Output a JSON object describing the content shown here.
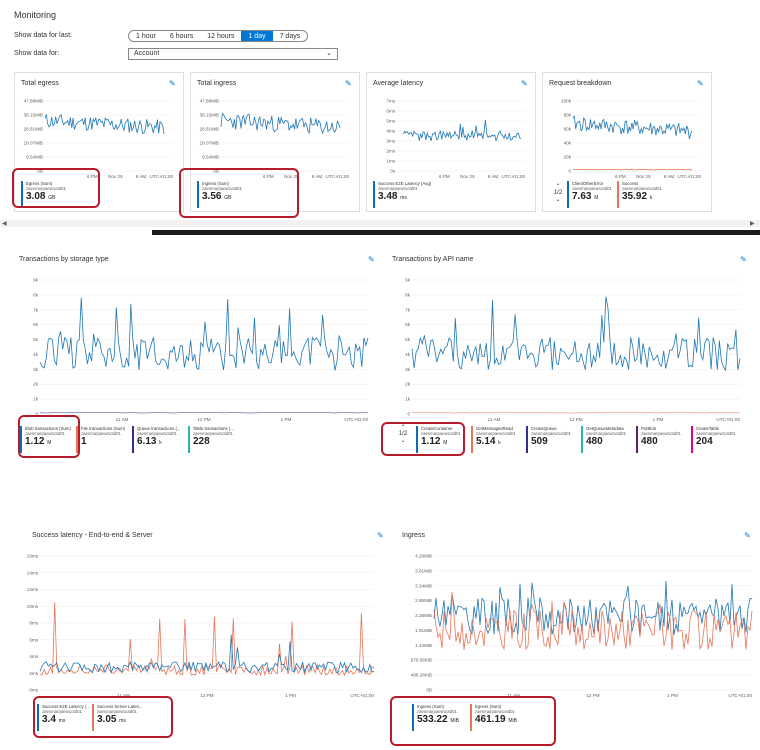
{
  "header": {
    "title": "Monitoring",
    "show_last_label": "Show data for last:",
    "show_for_label": "Show data for:",
    "time_options": [
      "1 hour",
      "6 hours",
      "12 hours",
      "1 day",
      "7 days"
    ],
    "time_selected": "1 day",
    "scope_value": "Account"
  },
  "tiles": [
    {
      "title": "Total egress",
      "yticks": [
        "47.68MiB",
        "38.15MiB",
        "28.61MiB",
        "19.07MiB",
        "9.54MiB",
        "0B"
      ],
      "xticks": [
        "6 PM",
        "Nov 25",
        "6 AM",
        "UTC+01:00"
      ],
      "legend": [
        {
          "name": "Egress (Sum)",
          "sub": "zaesmarpaew1otd01",
          "value": "3.08",
          "unit": "GB"
        }
      ]
    },
    {
      "title": "Total ingress",
      "yticks": [
        "47.68MiB",
        "38.15MiB",
        "28.61MiB",
        "19.07MiB",
        "9.54MiB",
        "0B"
      ],
      "xticks": [
        "6 PM",
        "Nov 25",
        "6 AM",
        "UTC+01:00"
      ],
      "legend": [
        {
          "name": "Ingress (Sum)",
          "sub": "zaesmarpaew1otd01",
          "value": "3.56",
          "unit": "GB"
        }
      ]
    },
    {
      "title": "Average latency",
      "yticks": [
        "7ms",
        "6ms",
        "5ms",
        "4ms",
        "3ms",
        "2ms",
        "1ms",
        "0s"
      ],
      "xticks": [
        "6 PM",
        "Nov 25",
        "6 AM",
        "UTC+01:00"
      ],
      "legend": [
        {
          "name": "Success E2E Latency (Avg)",
          "sub": "zaesmarpaew1otd01",
          "value": "3.48",
          "unit": "ms"
        }
      ]
    },
    {
      "title": "Request breakdown",
      "yticks": [
        "100k",
        "80k",
        "60k",
        "40k",
        "20k",
        "0"
      ],
      "xticks": [
        "6 PM",
        "Nov 25",
        "6 AM",
        "UTC+01:00"
      ],
      "pager": "1/2",
      "legend": [
        {
          "name": "ClientOtherError",
          "sub": "zaesmarpaew1otd01",
          "value": "7.63",
          "unit": "M"
        },
        {
          "name": "Success",
          "sub": "zaesmarpaew1otd01",
          "value": "35.92",
          "unit": "k"
        }
      ]
    }
  ],
  "panels": [
    {
      "title": "Transactions by storage type",
      "yticks": [
        "9k",
        "8k",
        "7k",
        "6k",
        "5k",
        "4k",
        "3k",
        "2k",
        "1k",
        "0"
      ],
      "xticks": [
        "11 AM",
        "12 PM",
        "1 PM",
        "UTC+01:00"
      ],
      "legend": [
        {
          "name": "Blob transactions (Sum)",
          "sub": "zaesmarpaew1otd01",
          "value": "1.12",
          "unit": "M"
        },
        {
          "name": "File transactions (Sum)",
          "sub": "zaesmarpaew1otd01",
          "value": "1",
          "unit": ""
        },
        {
          "name": "Queue transactions (...",
          "sub": "zaesmarpaew1otd01",
          "value": "6.13",
          "unit": "k"
        },
        {
          "name": "Table transactions (...",
          "sub": "zaesmarpaew1otd01",
          "value": "228",
          "unit": ""
        }
      ]
    },
    {
      "title": "Transactions by API name",
      "yticks": [
        "9k",
        "8k",
        "7k",
        "6k",
        "5k",
        "4k",
        "3k",
        "2k",
        "1k",
        "0"
      ],
      "xticks": [
        "11 AM",
        "12 PM",
        "1 PM",
        "UTC+01:00"
      ],
      "pager": "1/2",
      "legend": [
        {
          "name": "CreateContainer",
          "sub": "zaesmarpaew1otd01",
          "value": "1.12",
          "unit": "M"
        },
        {
          "name": "GetMessagesRead",
          "sub": "zaesmarpaew1otd01",
          "value": "5.14",
          "unit": "k"
        },
        {
          "name": "CreateQueue",
          "sub": "zaesmarpaew1otd01",
          "value": "509",
          "unit": ""
        },
        {
          "name": "GetQueueMetadata",
          "sub": "zaesmarpaew1otd01",
          "value": "480",
          "unit": ""
        },
        {
          "name": "PutBlob",
          "sub": "zaesmarpaew1otd01",
          "value": "480",
          "unit": ""
        },
        {
          "name": "CreateTable",
          "sub": "zaesmarpaew1otd01",
          "value": "204",
          "unit": ""
        }
      ]
    },
    {
      "title": "Success latency - End-to-end & Server",
      "yticks": [
        "16ms",
        "14ms",
        "12ms",
        "10ms",
        "8ms",
        "6ms",
        "4ms",
        "2ms",
        "0ms"
      ],
      "xticks": [
        "11 AM",
        "12 PM",
        "1 PM",
        "UTC+01:00"
      ],
      "legend": [
        {
          "name": "Success E2E Latency (...",
          "sub": "zaesmarpaew1otd01",
          "value": "3.4",
          "unit": "ms"
        },
        {
          "name": "Success Server Laten...",
          "sub": "zaesmarpaew1otd01",
          "value": "3.05",
          "unit": "ms"
        }
      ]
    },
    {
      "title": "Ingress",
      "yticks": [
        "4.29MiB",
        "3.81MiB",
        "3.34MiB",
        "2.86MiB",
        "2.38MiB",
        "1.91MiB",
        "1.43MiB",
        "976.56KiB",
        "488.28KiB",
        "0B"
      ],
      "xticks": [
        "11 AM",
        "12 PM",
        "1 PM",
        "UTC+01:00"
      ],
      "legend": [
        {
          "name": "Ingress (Sum)",
          "sub": "zaesmarpaew1otd01",
          "value": "533.22",
          "unit": "MiB"
        },
        {
          "name": "Egress (Sum)",
          "sub": "zaesmarpaew1otd01",
          "value": "461.19",
          "unit": "MiB"
        }
      ]
    }
  ],
  "colors": {
    "blue": "#1f77b4",
    "orange": "#e8765a",
    "red_highlight": "#b71c2b",
    "accent": "#0078d4",
    "legend_colors": [
      "#0f6cbd",
      "#e8765a",
      "#2e3192",
      "#2bb5a5",
      "#5c1e6e",
      "#e3008c"
    ]
  },
  "icons": {
    "pin": "pin-icon",
    "chevron_up": "chevron-up-icon",
    "chevron_down": "chevron-down-icon",
    "scroll_left": "arrow-left-icon",
    "scroll_right": "arrow-right-icon"
  }
}
